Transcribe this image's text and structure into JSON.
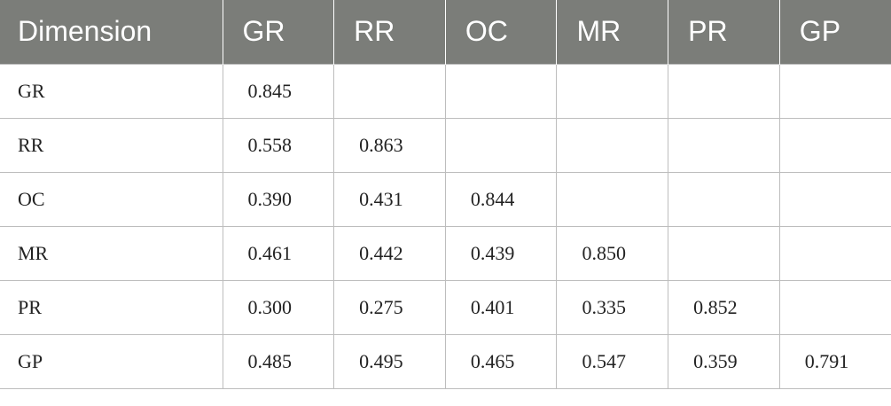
{
  "table": {
    "headers": [
      "Dimension",
      "GR",
      "RR",
      "OC",
      "MR",
      "PR",
      "GP"
    ],
    "rows": [
      {
        "label": "GR",
        "cells": [
          "0.845",
          "",
          "",
          "",
          "",
          ""
        ]
      },
      {
        "label": "RR",
        "cells": [
          "0.558",
          "0.863",
          "",
          "",
          "",
          ""
        ]
      },
      {
        "label": "OC",
        "cells": [
          "0.390",
          "0.431",
          "0.844",
          "",
          "",
          ""
        ]
      },
      {
        "label": "MR",
        "cells": [
          "0.461",
          "0.442",
          "0.439",
          "0.850",
          "",
          ""
        ]
      },
      {
        "label": "PR",
        "cells": [
          "0.300",
          "0.275",
          "0.401",
          "0.335",
          "0.852",
          ""
        ]
      },
      {
        "label": "GP",
        "cells": [
          "0.485",
          "0.495",
          "0.465",
          "0.547",
          "0.359",
          "0.791"
        ]
      }
    ]
  }
}
